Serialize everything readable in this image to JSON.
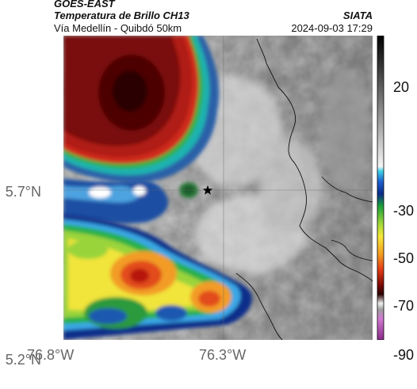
{
  "header": {
    "satellite": "GOES-EAST",
    "product": "Temperatura de Brillo CH13",
    "organization": "SIATA",
    "area": "Vía Medellín - Quibdó 50km",
    "timestamp": "2024-09-03 17:29"
  },
  "axes": {
    "lat_ticks": [
      "5.7°N",
      "5.2°N"
    ],
    "lon_ticks": [
      "76.8°W",
      "76.3°W"
    ]
  },
  "colorbar": {
    "ticks": [
      "20",
      "-30",
      "-50",
      "-70",
      "-90"
    ]
  },
  "marker": {
    "type": "star",
    "icon": "star-icon"
  }
}
